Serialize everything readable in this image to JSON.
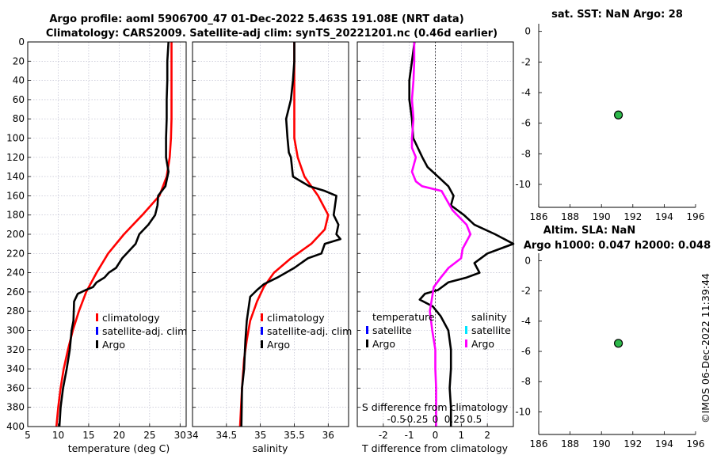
{
  "header": {
    "title_line1": "Argo profile: aoml 5906700_47 01-Dec-2022 5.463S 191.08E (NRT data)",
    "title_line2": "Climatology: CARS2009. Satellite-adj clim: synTS_20221201.nc (0.46d earlier)",
    "watermark": "©IMOS 06-Dec-2022 11:39:44"
  },
  "chart_data": [
    {
      "id": "temperature",
      "type": "line",
      "xlabel": "temperature (deg C)",
      "xlim": [
        5,
        31
      ],
      "xticks": [
        5,
        10,
        15,
        20,
        25,
        30
      ],
      "ylim": [
        0,
        400
      ],
      "yticks": [
        0,
        20,
        40,
        60,
        80,
        100,
        120,
        140,
        160,
        180,
        200,
        220,
        240,
        260,
        280,
        300,
        320,
        340,
        360,
        380,
        400
      ],
      "legend": [
        "climatology",
        "satellite-adj. clim",
        "Argo"
      ],
      "series": [
        {
          "name": "climatology",
          "color": "#ff0000",
          "points": [
            [
              28.6,
              0
            ],
            [
              28.6,
              40
            ],
            [
              28.6,
              80
            ],
            [
              28.5,
              100
            ],
            [
              28.3,
              120
            ],
            [
              27.8,
              140
            ],
            [
              26.6,
              160
            ],
            [
              23.8,
              180
            ],
            [
              20.8,
              200
            ],
            [
              18.2,
              220
            ],
            [
              16.3,
              240
            ],
            [
              14.6,
              260
            ],
            [
              13.4,
              280
            ],
            [
              12.4,
              300
            ],
            [
              11.6,
              320
            ],
            [
              10.9,
              340
            ],
            [
              10.4,
              360
            ],
            [
              10.0,
              380
            ],
            [
              9.7,
              400
            ]
          ]
        },
        {
          "name": "Argo",
          "color": "#000000",
          "points": [
            [
              28.1,
              0
            ],
            [
              27.9,
              20
            ],
            [
              27.9,
              40
            ],
            [
              27.8,
              60
            ],
            [
              27.8,
              80
            ],
            [
              27.7,
              100
            ],
            [
              27.7,
              120
            ],
            [
              28.1,
              135
            ],
            [
              27.6,
              150
            ],
            [
              26.4,
              160
            ],
            [
              26.3,
              170
            ],
            [
              25.9,
              180
            ],
            [
              24.8,
              190
            ],
            [
              23.3,
              200
            ],
            [
              22.7,
              210
            ],
            [
              20.5,
              225
            ],
            [
              19.5,
              235
            ],
            [
              18.3,
              240
            ],
            [
              17.6,
              245
            ],
            [
              16.3,
              250
            ],
            [
              15.7,
              255
            ],
            [
              14.5,
              258
            ],
            [
              13.2,
              262
            ],
            [
              12.6,
              270
            ],
            [
              12.5,
              290
            ],
            [
              12.2,
              300
            ],
            [
              11.9,
              320
            ],
            [
              11.4,
              340
            ],
            [
              10.8,
              360
            ],
            [
              10.4,
              380
            ],
            [
              10.2,
              400
            ]
          ]
        }
      ]
    },
    {
      "id": "salinity",
      "type": "line",
      "xlabel": "salinity",
      "xlim": [
        34.0,
        36.3
      ],
      "xticks": [
        34,
        34.5,
        35,
        35.5,
        36
      ],
      "ylim": [
        0,
        400
      ],
      "legend": [
        "climatology",
        "satellite-adj. clim",
        "Argo"
      ],
      "series": [
        {
          "name": "climatology",
          "color": "#ff0000",
          "points": [
            [
              35.5,
              0
            ],
            [
              35.5,
              60
            ],
            [
              35.5,
              100
            ],
            [
              35.55,
              120
            ],
            [
              35.65,
              140
            ],
            [
              35.85,
              160
            ],
            [
              36.0,
              180
            ],
            [
              35.95,
              195
            ],
            [
              35.75,
              210
            ],
            [
              35.45,
              225
            ],
            [
              35.2,
              240
            ],
            [
              35.05,
              255
            ],
            [
              34.95,
              270
            ],
            [
              34.85,
              290
            ],
            [
              34.8,
              310
            ],
            [
              34.76,
              330
            ],
            [
              34.73,
              360
            ],
            [
              34.7,
              400
            ]
          ]
        },
        {
          "name": "Argo",
          "color": "#000000",
          "points": [
            [
              35.5,
              0
            ],
            [
              35.5,
              20
            ],
            [
              35.48,
              40
            ],
            [
              35.45,
              60
            ],
            [
              35.38,
              80
            ],
            [
              35.4,
              100
            ],
            [
              35.42,
              115
            ],
            [
              35.45,
              120
            ],
            [
              35.48,
              140
            ],
            [
              35.72,
              150
            ],
            [
              35.95,
              155
            ],
            [
              36.12,
              160
            ],
            [
              36.1,
              170
            ],
            [
              36.08,
              180
            ],
            [
              36.15,
              190
            ],
            [
              36.12,
              200
            ],
            [
              36.18,
              205
            ],
            [
              35.95,
              210
            ],
            [
              35.9,
              220
            ],
            [
              35.7,
              225
            ],
            [
              35.5,
              235
            ],
            [
              35.25,
              245
            ],
            [
              35.05,
              252
            ],
            [
              34.95,
              258
            ],
            [
              34.85,
              265
            ],
            [
              34.8,
              290
            ],
            [
              34.78,
              310
            ],
            [
              34.76,
              340
            ],
            [
              34.73,
              360
            ],
            [
              34.72,
              400
            ]
          ]
        }
      ]
    },
    {
      "id": "difference",
      "type": "line",
      "xlabel": "T difference from climatology",
      "xlabel_top": "S difference from climatology",
      "xlim": [
        -3,
        3
      ],
      "xticks": [
        -2,
        -1,
        0,
        1,
        2
      ],
      "x2lim": [
        -1,
        1
      ],
      "x2ticks": [
        -0.5,
        -0.25,
        0,
        0.25,
        0.5
      ],
      "x2ticklabels": [
        "-0.5",
        "-0.25",
        "0",
        "0.25",
        "0.5"
      ],
      "ylim": [
        0,
        400
      ],
      "legend_temperature": {
        "title": "temperature",
        "items": [
          "satellite",
          "Argo"
        ]
      },
      "legend_salinity": {
        "title": "salinity",
        "items": [
          "satellite",
          "Argo"
        ]
      },
      "series": [
        {
          "name": "temperature Argo",
          "color": "#000000",
          "points": [
            [
              -0.8,
              0
            ],
            [
              -0.9,
              20
            ],
            [
              -1.0,
              40
            ],
            [
              -1.0,
              60
            ],
            [
              -0.9,
              80
            ],
            [
              -0.85,
              100
            ],
            [
              -0.5,
              120
            ],
            [
              -0.3,
              130
            ],
            [
              0.1,
              140
            ],
            [
              0.5,
              150
            ],
            [
              0.7,
              160
            ],
            [
              0.6,
              170
            ],
            [
              1.1,
              180
            ],
            [
              1.5,
              190
            ],
            [
              2.3,
              200
            ],
            [
              3.0,
              210
            ],
            [
              2.0,
              220
            ],
            [
              1.5,
              230
            ],
            [
              1.7,
              240
            ],
            [
              1.2,
              245
            ],
            [
              0.5,
              250
            ],
            [
              0.1,
              258
            ],
            [
              -0.4,
              262
            ],
            [
              -0.6,
              268
            ],
            [
              -0.1,
              275
            ],
            [
              0.2,
              285
            ],
            [
              0.5,
              300
            ],
            [
              0.6,
              320
            ],
            [
              0.6,
              340
            ],
            [
              0.55,
              360
            ],
            [
              0.6,
              380
            ],
            [
              0.6,
              400
            ]
          ]
        },
        {
          "name": "salinity Argo",
          "color": "#ff00ff",
          "points": [
            [
              -0.27,
              0
            ],
            [
              -0.27,
              20
            ],
            [
              -0.28,
              40
            ],
            [
              -0.3,
              60
            ],
            [
              -0.28,
              80
            ],
            [
              -0.3,
              100
            ],
            [
              -0.3,
              110
            ],
            [
              -0.25,
              120
            ],
            [
              -0.3,
              135
            ],
            [
              -0.25,
              145
            ],
            [
              -0.17,
              150
            ],
            [
              0.08,
              155
            ],
            [
              0.15,
              165
            ],
            [
              0.22,
              175
            ],
            [
              0.4,
              190
            ],
            [
              0.45,
              200
            ],
            [
              0.35,
              215
            ],
            [
              0.33,
              225
            ],
            [
              0.17,
              235
            ],
            [
              0.07,
              245
            ],
            [
              -0.02,
              255
            ],
            [
              -0.05,
              270
            ],
            [
              -0.07,
              280
            ],
            [
              -0.04,
              300
            ],
            [
              0.0,
              320
            ],
            [
              0.0,
              340
            ],
            [
              0.01,
              360
            ],
            [
              0.01,
              380
            ],
            [
              0.01,
              400
            ]
          ]
        }
      ]
    },
    {
      "id": "sst_map",
      "type": "scatter",
      "title": "sat. SST: NaN Argo: 28",
      "xlim": [
        186,
        196
      ],
      "xticks": [
        186,
        188,
        190,
        192,
        194,
        196
      ],
      "ylim": [
        -11.5,
        0.5
      ],
      "yticks": [
        0,
        -2,
        -4,
        -6,
        -8,
        -10
      ],
      "points": [
        {
          "x": 191.08,
          "y": -5.463,
          "color": "#2db84a"
        }
      ]
    },
    {
      "id": "sla_map",
      "type": "scatter",
      "title": "Altim. SLA: NaN",
      "subtitle": "Argo h1000: 0.047 h2000: 0.048",
      "xlim": [
        186,
        196
      ],
      "xticks": [
        186,
        188,
        190,
        192,
        194,
        196
      ],
      "ylim": [
        -11.5,
        0.5
      ],
      "yticks": [
        0,
        -2,
        -4,
        -6,
        -8,
        -10
      ],
      "points": [
        {
          "x": 191.08,
          "y": -5.463,
          "color": "#2db84a"
        }
      ]
    }
  ]
}
